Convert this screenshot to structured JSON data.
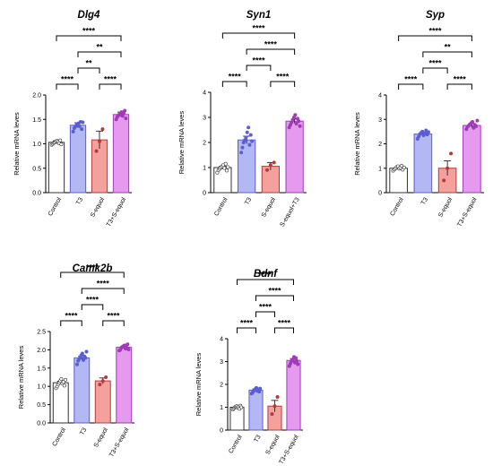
{
  "chart_data": [
    {
      "type": "bar",
      "title": "Dlg4",
      "ylabel": "Relative mRNA leves",
      "xlabel": "",
      "ylim": [
        0,
        2.0
      ],
      "yticks": [
        "0.0",
        "0.5",
        "1.0",
        "1.5",
        "2.0"
      ],
      "categories": [
        "Control",
        "T3",
        "S-equol",
        "T3+S-equol"
      ],
      "values": [
        1.03,
        1.38,
        1.08,
        1.6
      ],
      "errors": [
        0.03,
        0.05,
        0.18,
        0.05
      ],
      "colors": [
        "#ffffff",
        "#b3b8f5",
        "#f4a09c",
        "#e59af0"
      ],
      "edge_colors": [
        "#333333",
        "#5a5fd0",
        "#b23b3b",
        "#a03bb8"
      ],
      "points": [
        [
          0.98,
          1.0,
          1.02,
          1.03,
          1.05,
          1.06,
          1.04,
          1.01,
          1.07,
          0.99
        ],
        [
          1.25,
          1.32,
          1.35,
          1.38,
          1.4,
          1.42,
          1.36,
          1.45,
          1.3,
          1.44
        ],
        [
          0.85,
          1.05,
          1.3
        ],
        [
          1.5,
          1.55,
          1.58,
          1.6,
          1.62,
          1.65,
          1.57,
          1.63,
          1.68,
          1.52
        ]
      ],
      "comparisons": [
        {
          "from": 0,
          "to": 1,
          "label": "****"
        },
        {
          "from": 2,
          "to": 3,
          "label": "****"
        },
        {
          "from": 1,
          "to": 2,
          "label": "**"
        },
        {
          "from": 1,
          "to": 3,
          "label": "**"
        },
        {
          "from": 0,
          "to": 3,
          "label": "****"
        }
      ]
    },
    {
      "type": "bar",
      "title": "Syn1",
      "ylabel": "Relative mRNA leves",
      "xlabel": "",
      "ylim": [
        0,
        4
      ],
      "yticks": [
        "0",
        "1",
        "2",
        "3",
        "4"
      ],
      "categories": [
        "Control",
        "T3",
        "S-equol",
        "S-equol+T3"
      ],
      "values": [
        1.0,
        2.1,
        1.05,
        2.85
      ],
      "errors": [
        0.05,
        0.15,
        0.15,
        0.08
      ],
      "colors": [
        "#ffffff",
        "#b3b8f5",
        "#f4a09c",
        "#e59af0"
      ],
      "edge_colors": [
        "#333333",
        "#5a5fd0",
        "#b23b3b",
        "#a03bb8"
      ],
      "points": [
        [
          0.8,
          0.9,
          0.95,
          1.0,
          1.05,
          1.1,
          0.98,
          1.15,
          0.88,
          1.02
        ],
        [
          1.6,
          1.8,
          2.0,
          2.1,
          2.2,
          2.4,
          2.6,
          1.9,
          2.3,
          2.05
        ],
        [
          0.9,
          1.1,
          1.2
        ],
        [
          2.6,
          2.7,
          2.8,
          2.9,
          3.0,
          3.1,
          2.75,
          2.95,
          2.85,
          2.65
        ]
      ],
      "comparisons": [
        {
          "from": 0,
          "to": 1,
          "label": "****"
        },
        {
          "from": 2,
          "to": 3,
          "label": "****"
        },
        {
          "from": 1,
          "to": 2,
          "label": "****"
        },
        {
          "from": 1,
          "to": 3,
          "label": "****"
        },
        {
          "from": 0,
          "to": 3,
          "label": "****"
        }
      ]
    },
    {
      "type": "bar",
      "title": "Syp",
      "ylabel": "Relative mRNA leves",
      "xlabel": "",
      "ylim": [
        0,
        4
      ],
      "yticks": [
        "0",
        "1",
        "2",
        "3",
        "4"
      ],
      "categories": [
        "Control",
        "T3",
        "S-equol",
        "T3+S-equol"
      ],
      "values": [
        1.0,
        2.4,
        1.0,
        2.75
      ],
      "errors": [
        0.04,
        0.07,
        0.3,
        0.08
      ],
      "colors": [
        "#ffffff",
        "#b3b8f5",
        "#f4a09c",
        "#e59af0"
      ],
      "edge_colors": [
        "#333333",
        "#5a5fd0",
        "#b23b3b",
        "#a03bb8"
      ],
      "points": [
        [
          0.9,
          0.95,
          1.0,
          1.05,
          1.08,
          0.98,
          1.02,
          1.1,
          0.94,
          1.03
        ],
        [
          2.2,
          2.3,
          2.4,
          2.45,
          2.5,
          2.35,
          2.42,
          2.55,
          2.38,
          2.48
        ],
        [
          0.5,
          1.0,
          1.6
        ],
        [
          2.6,
          2.7,
          2.75,
          2.8,
          2.85,
          2.9,
          2.65,
          2.78,
          2.72,
          2.95
        ]
      ],
      "comparisons": [
        {
          "from": 0,
          "to": 1,
          "label": "****"
        },
        {
          "from": 2,
          "to": 3,
          "label": "****"
        },
        {
          "from": 1,
          "to": 2,
          "label": "****"
        },
        {
          "from": 1,
          "to": 3,
          "label": "**"
        },
        {
          "from": 0,
          "to": 3,
          "label": "****"
        }
      ]
    },
    {
      "type": "bar",
      "title": "Camk2b",
      "ylabel": "Relative mRNA leves",
      "xlabel": "",
      "ylim": [
        0,
        2.5
      ],
      "yticks": [
        "0.0",
        "0.5",
        "1.0",
        "1.5",
        "2.0",
        "2.5"
      ],
      "categories": [
        "Control",
        "T3",
        "S-equol",
        "T3+S-equol"
      ],
      "values": [
        1.1,
        1.78,
        1.15,
        2.07
      ],
      "errors": [
        0.04,
        0.05,
        0.08,
        0.03
      ],
      "colors": [
        "#ffffff",
        "#b3b8f5",
        "#f4a09c",
        "#e59af0"
      ],
      "edge_colors": [
        "#333333",
        "#5a5fd0",
        "#b23b3b",
        "#a03bb8"
      ],
      "points": [
        [
          0.95,
          1.0,
          1.05,
          1.1,
          1.15,
          1.2,
          1.08,
          1.12,
          1.02,
          1.18
        ],
        [
          1.6,
          1.7,
          1.75,
          1.8,
          1.85,
          1.9,
          1.72,
          1.82,
          1.78,
          1.95
        ],
        [
          1.05,
          1.15,
          1.25
        ],
        [
          1.98,
          2.0,
          2.05,
          2.08,
          2.1,
          2.12,
          2.03,
          2.06,
          2.15,
          2.01
        ]
      ],
      "comparisons": [
        {
          "from": 0,
          "to": 1,
          "label": "****"
        },
        {
          "from": 2,
          "to": 3,
          "label": "****"
        },
        {
          "from": 1,
          "to": 2,
          "label": "****"
        },
        {
          "from": 1,
          "to": 3,
          "label": "****"
        },
        {
          "from": 0,
          "to": 3,
          "label": "****"
        }
      ]
    },
    {
      "type": "bar",
      "title": "Bdnf",
      "ylabel": "Relative mRNA leves",
      "xlabel": "",
      "ylim": [
        0,
        4
      ],
      "yticks": [
        "0",
        "1",
        "2",
        "3",
        "4"
      ],
      "categories": [
        "Control",
        "T3",
        "S-equol",
        "T3+S-equol"
      ],
      "values": [
        1.0,
        1.75,
        1.05,
        3.05
      ],
      "errors": [
        0.03,
        0.05,
        0.25,
        0.08
      ],
      "colors": [
        "#ffffff",
        "#b3b8f5",
        "#f4a09c",
        "#e59af0"
      ],
      "edge_colors": [
        "#333333",
        "#5a5fd0",
        "#b23b3b",
        "#a03bb8"
      ],
      "points": [
        [
          0.9,
          0.95,
          1.0,
          1.02,
          1.05,
          0.98,
          1.03,
          0.93,
          1.07,
          1.0
        ],
        [
          1.6,
          1.65,
          1.7,
          1.75,
          1.8,
          1.85,
          1.72,
          1.78,
          1.68,
          1.82
        ],
        [
          0.7,
          1.05,
          1.45
        ],
        [
          2.8,
          2.9,
          3.0,
          3.05,
          3.1,
          3.2,
          2.95,
          3.15,
          3.02,
          2.88
        ]
      ],
      "comparisons": [
        {
          "from": 0,
          "to": 1,
          "label": "****"
        },
        {
          "from": 2,
          "to": 3,
          "label": "****"
        },
        {
          "from": 1,
          "to": 2,
          "label": "****"
        },
        {
          "from": 1,
          "to": 3,
          "label": "****"
        },
        {
          "from": 0,
          "to": 3,
          "label": "****"
        }
      ]
    }
  ]
}
